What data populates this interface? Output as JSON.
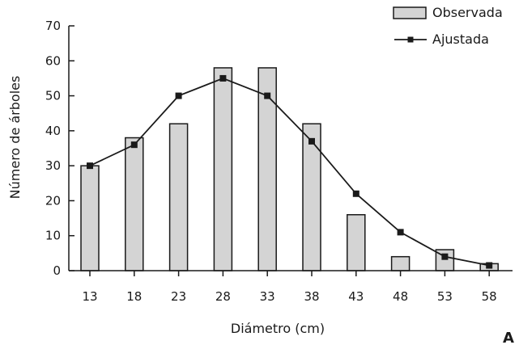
{
  "chart_data": {
    "type": "bar",
    "categories": [
      "13",
      "18",
      "23",
      "28",
      "33",
      "38",
      "43",
      "48",
      "53",
      "58"
    ],
    "series": [
      {
        "name": "Observada",
        "type": "bar",
        "values": [
          30,
          38,
          42,
          58,
          58,
          42,
          16,
          4,
          6,
          2
        ]
      },
      {
        "name": "Ajustada",
        "type": "line",
        "values": [
          30,
          36,
          50,
          55,
          50,
          37,
          22,
          11,
          4,
          1.5
        ]
      }
    ],
    "xlabel": "Diámetro (cm)",
    "ylabel": "Número de árboles",
    "ylim": [
      0,
      70
    ],
    "yticks": [
      "0",
      "10",
      "20",
      "30",
      "40",
      "50",
      "60",
      "70"
    ],
    "grid": false,
    "legend_position": "top-right",
    "panel_label": "A",
    "colors": {
      "bar_fill": "#d4d4d4",
      "bar_stroke": "#1a1a1a",
      "line": "#1a1a1a"
    }
  }
}
